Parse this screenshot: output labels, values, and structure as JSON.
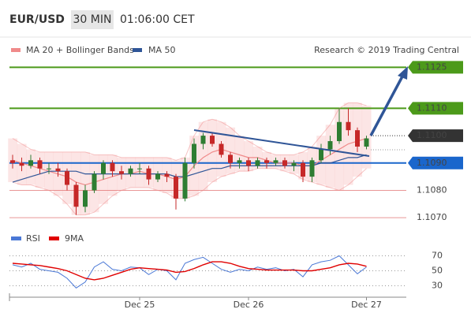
{
  "header": {
    "symbol": "EUR/USD",
    "interval": "30 MIN",
    "time": "01:06:00 CET"
  },
  "source": "Research © 2019 Trading Central",
  "chart_data": [
    {
      "type": "candlestick",
      "ylim": [
        1.1066,
        1.1128
      ],
      "up_color": "#2e7d32",
      "down_color": "#c62828",
      "open": [
        1.1091,
        1.109,
        1.1089,
        1.1091,
        1.1088,
        1.1088,
        1.1087,
        1.1082,
        1.1074,
        1.108,
        1.1086,
        1.109,
        1.1087,
        1.1086,
        1.1088,
        1.1088,
        1.1084,
        1.1086,
        1.1085,
        1.1077,
        1.109,
        1.1097,
        1.11,
        1.1097,
        1.1093,
        1.109,
        1.1091,
        1.1089,
        1.1091,
        1.109,
        1.1091,
        1.1089,
        1.109,
        1.1085,
        1.1091,
        1.1095,
        1.1098,
        1.1105,
        1.1102,
        1.1096
      ],
      "high": [
        1.1093,
        1.1092,
        1.1093,
        1.1092,
        1.109,
        1.109,
        1.1088,
        1.1083,
        1.1082,
        1.1087,
        1.1091,
        1.1091,
        1.1089,
        1.1089,
        1.109,
        1.1089,
        1.1087,
        1.1087,
        1.1086,
        1.1092,
        1.1099,
        1.1101,
        1.1101,
        1.1098,
        1.1094,
        1.1092,
        1.1092,
        1.1092,
        1.1092,
        1.1092,
        1.1092,
        1.1091,
        1.1091,
        1.1092,
        1.1097,
        1.11,
        1.111,
        1.111,
        1.1103,
        1.11
      ],
      "low": [
        1.1088,
        1.1087,
        1.1088,
        1.1086,
        1.1086,
        1.1085,
        1.108,
        1.1071,
        1.1072,
        1.1079,
        1.1084,
        1.1085,
        1.1084,
        1.1085,
        1.1086,
        1.1082,
        1.1083,
        1.1083,
        1.1073,
        1.1076,
        1.1088,
        1.1095,
        1.1096,
        1.1092,
        1.1088,
        1.1088,
        1.1087,
        1.1088,
        1.1088,
        1.1089,
        1.1088,
        1.1087,
        1.1083,
        1.1083,
        1.109,
        1.1093,
        1.1097,
        1.11,
        1.1094,
        1.1095
      ],
      "close": [
        1.109,
        1.1089,
        1.1091,
        1.1088,
        1.1088,
        1.1087,
        1.1082,
        1.1074,
        1.108,
        1.1086,
        1.109,
        1.1087,
        1.1086,
        1.1088,
        1.1088,
        1.1084,
        1.1086,
        1.1085,
        1.1077,
        1.109,
        1.1097,
        1.11,
        1.1097,
        1.1093,
        1.109,
        1.1091,
        1.1089,
        1.1091,
        1.109,
        1.1091,
        1.1089,
        1.109,
        1.1085,
        1.1091,
        1.1095,
        1.1098,
        1.1105,
        1.1102,
        1.1096,
        1.1099
      ],
      "series": [
        {
          "name": "MA 20 + Bollinger Bands",
          "color": "#f08a8a",
          "values": [
            1.1091,
            1.109,
            1.1089,
            1.1088,
            1.1087,
            1.1086,
            1.1085,
            1.1083,
            1.1082,
            1.1083,
            1.1084,
            1.1085,
            1.1086,
            1.1086,
            1.1087,
            1.1086,
            1.1086,
            1.1085,
            1.1084,
            1.1085,
            1.1089,
            1.1092,
            1.1094,
            1.1095,
            1.1094,
            1.1093,
            1.1092,
            1.1092,
            1.1091,
            1.109,
            1.109,
            1.109,
            1.1089,
            1.1089,
            1.1091,
            1.1093,
            1.1095,
            1.1097,
            1.1098,
            1.1099
          ],
          "upper": [
            1.1099,
            1.1097,
            1.1095,
            1.1094,
            1.1094,
            1.1094,
            1.1094,
            1.1094,
            1.1094,
            1.1093,
            1.1093,
            1.1093,
            1.1092,
            1.1092,
            1.1092,
            1.1092,
            1.1092,
            1.1092,
            1.1091,
            1.1092,
            1.11,
            1.1105,
            1.1106,
            1.1105,
            1.1103,
            1.11,
            1.1098,
            1.1096,
            1.1094,
            1.1093,
            1.1093,
            1.1093,
            1.1094,
            1.1096,
            1.11,
            1.1104,
            1.111,
            1.1112,
            1.1112,
            1.1111
          ],
          "lower": [
            1.1083,
            1.1082,
            1.1082,
            1.1081,
            1.108,
            1.1078,
            1.1075,
            1.1071,
            1.1071,
            1.1072,
            1.1075,
            1.1078,
            1.108,
            1.1081,
            1.1081,
            1.1081,
            1.108,
            1.1079,
            1.1077,
            1.1077,
            1.1078,
            1.108,
            1.1083,
            1.1085,
            1.1086,
            1.1087,
            1.1087,
            1.1088,
            1.1088,
            1.1088,
            1.1087,
            1.1086,
            1.1084,
            1.1083,
            1.1082,
            1.1081,
            1.108,
            1.1082,
            1.1085,
            1.1088
          ]
        },
        {
          "name": "MA 50",
          "color": "#2f5597",
          "values": [
            1.1083,
            1.1084,
            1.1085,
            1.1086,
            1.1087,
            1.1087,
            1.1087,
            1.1087,
            1.1086,
            1.1086,
            1.1086,
            1.1086,
            1.1086,
            1.1086,
            1.1086,
            1.1086,
            1.1086,
            1.1086,
            1.1085,
            1.1085,
            1.1086,
            1.1087,
            1.1088,
            1.1088,
            1.1089,
            1.1089,
            1.1089,
            1.1089,
            1.1089,
            1.1089,
            1.1089,
            1.1089,
            1.1089,
            1.1089,
            1.109,
            1.109,
            1.1091,
            1.1092,
            1.1092,
            1.1093
          ]
        }
      ],
      "levels": [
        {
          "value": 1.1125,
          "label": "1.1125",
          "color": "#4c9a1a",
          "box": "filled",
          "line": "solid"
        },
        {
          "value": 1.111,
          "label": "1.1110",
          "color": "#4c9a1a",
          "box": "filled",
          "line": "solid"
        },
        {
          "value": 1.11,
          "label": "1.1100",
          "color": "#333333",
          "box": "filled",
          "line": "dotted"
        },
        {
          "value": 1.109,
          "label": "1.1090",
          "color": "#1a66cc",
          "box": "filled",
          "line": "solid"
        },
        {
          "value": 1.108,
          "label": "1.1080",
          "color": "#e06a6a",
          "box": "none",
          "line": "solid"
        },
        {
          "value": 1.107,
          "label": "1.1070",
          "color": "#e06a6a",
          "box": "none",
          "line": "solid"
        }
      ]
    },
    {
      "type": "line",
      "ylim": [
        20,
        80
      ],
      "yticks": [
        30,
        50,
        70
      ],
      "grid": true,
      "categories": [
        null,
        null,
        null,
        null,
        null,
        null,
        null,
        null,
        null,
        null,
        null,
        null,
        null,
        null,
        "Dec 25",
        null,
        null,
        null,
        null,
        null,
        null,
        null,
        null,
        null,
        null,
        null,
        "Dec 26",
        null,
        null,
        null,
        null,
        null,
        null,
        null,
        null,
        null,
        null,
        null,
        null,
        "Dec 27"
      ],
      "series": [
        {
          "name": "RSI",
          "color": "#4a78d6",
          "values": [
            58,
            55,
            60,
            52,
            50,
            48,
            40,
            27,
            35,
            55,
            62,
            52,
            50,
            55,
            54,
            45,
            52,
            50,
            38,
            60,
            65,
            68,
            60,
            52,
            48,
            52,
            50,
            55,
            52,
            54,
            50,
            52,
            42,
            58,
            62,
            64,
            70,
            58,
            46,
            55
          ]
        },
        {
          "name": "9MA",
          "color": "#e00000",
          "values": [
            60,
            59,
            58,
            57,
            55,
            53,
            50,
            45,
            40,
            38,
            40,
            44,
            48,
            52,
            54,
            53,
            52,
            51,
            48,
            49,
            53,
            58,
            62,
            62,
            60,
            56,
            53,
            52,
            51,
            51,
            51,
            51,
            50,
            50,
            52,
            54,
            58,
            60,
            59,
            56
          ]
        }
      ]
    }
  ]
}
